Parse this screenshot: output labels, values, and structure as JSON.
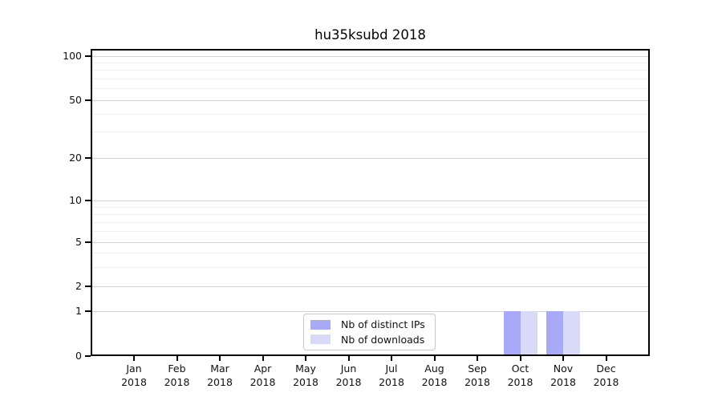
{
  "chart_data": {
    "type": "bar",
    "title": "hu35ksubd 2018",
    "x_ticks": [
      [
        "Jan",
        "2018"
      ],
      [
        "Feb",
        "2018"
      ],
      [
        "Mar",
        "2018"
      ],
      [
        "Apr",
        "2018"
      ],
      [
        "May",
        "2018"
      ],
      [
        "Jun",
        "2018"
      ],
      [
        "Jul",
        "2018"
      ],
      [
        "Aug",
        "2018"
      ],
      [
        "Sep",
        "2018"
      ],
      [
        "Oct",
        "2018"
      ],
      [
        "Nov",
        "2018"
      ],
      [
        "Dec",
        "2018"
      ]
    ],
    "y_ticks": [
      "100",
      "50",
      "20",
      "10",
      "5",
      "2",
      "1",
      "0"
    ],
    "y_scale": "symlog (linear below 1, compressed log above)",
    "ylim": [
      0,
      110
    ],
    "grid": "horizontal major and minor gridlines",
    "legend_position": "inside plot, lower center-left",
    "series": [
      {
        "name": "Nb of distinct IPs",
        "color": "#a9aaf7",
        "values": [
          0,
          0,
          0,
          0,
          0,
          0,
          0,
          0,
          0,
          1,
          1,
          0
        ]
      },
      {
        "name": "Nb of downloads",
        "color": "#d8daf8",
        "values": [
          0,
          0,
          0,
          0,
          0,
          0,
          0,
          0,
          0,
          1,
          1,
          0
        ]
      }
    ],
    "colors": {
      "spine": "#000000",
      "grid_major": "#d2d2d2",
      "grid_minor": "#f0f0f1",
      "background": "#ffffff"
    }
  }
}
